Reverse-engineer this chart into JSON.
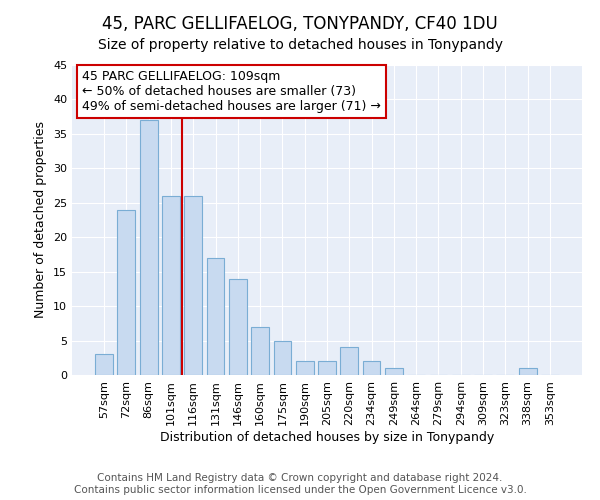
{
  "title": "45, PARC GELLIFAELOG, TONYPANDY, CF40 1DU",
  "subtitle": "Size of property relative to detached houses in Tonypandy",
  "xlabel": "Distribution of detached houses by size in Tonypandy",
  "ylabel": "Number of detached properties",
  "categories": [
    "57sqm",
    "72sqm",
    "86sqm",
    "101sqm",
    "116sqm",
    "131sqm",
    "146sqm",
    "160sqm",
    "175sqm",
    "190sqm",
    "205sqm",
    "220sqm",
    "234sqm",
    "249sqm",
    "264sqm",
    "279sqm",
    "294sqm",
    "309sqm",
    "323sqm",
    "338sqm",
    "353sqm"
  ],
  "values": [
    3,
    24,
    37,
    26,
    26,
    17,
    14,
    7,
    5,
    2,
    2,
    4,
    2,
    1,
    0,
    0,
    0,
    0,
    0,
    1,
    0
  ],
  "bar_color": "#c8daf0",
  "bar_edge_color": "#7aadd4",
  "vline_x": 3.5,
  "vline_color": "#cc0000",
  "annotation_box_text": "45 PARC GELLIFAELOG: 109sqm\n← 50% of detached houses are smaller (73)\n49% of semi-detached houses are larger (71) →",
  "box_edge_color": "#cc0000",
  "ylim": [
    0,
    45
  ],
  "yticks": [
    0,
    5,
    10,
    15,
    20,
    25,
    30,
    35,
    40,
    45
  ],
  "bg_color": "#e8eef8",
  "grid_color": "#ffffff",
  "footer_text": "Contains HM Land Registry data © Crown copyright and database right 2024.\nContains public sector information licensed under the Open Government Licence v3.0.",
  "title_fontsize": 12,
  "subtitle_fontsize": 10,
  "annotation_fontsize": 9,
  "axis_label_fontsize": 9,
  "tick_fontsize": 8,
  "footer_fontsize": 7.5
}
